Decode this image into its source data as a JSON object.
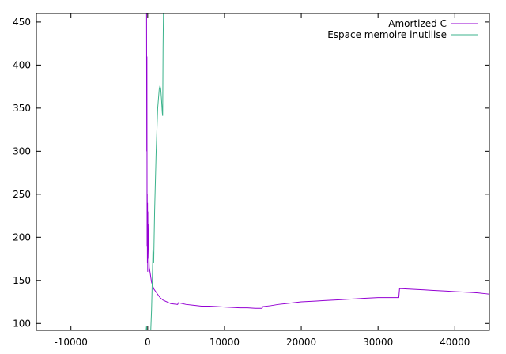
{
  "chart_data": {
    "type": "line",
    "title": "",
    "xlabel": "",
    "ylabel": "",
    "xlim": [
      -14500,
      44500
    ],
    "ylim": [
      92,
      460
    ],
    "grid": false,
    "legend_position": "top-right",
    "x_ticks": [
      -10000,
      0,
      10000,
      20000,
      30000,
      40000
    ],
    "y_ticks": [
      100,
      150,
      200,
      250,
      300,
      350,
      400,
      450
    ],
    "x_tick_labels": [
      "-10000",
      "0",
      "10000",
      "20000",
      "30000",
      "40000"
    ],
    "y_tick_labels": [
      "100",
      "150",
      "200",
      "250",
      "300",
      "350",
      "400",
      "450"
    ],
    "series": [
      {
        "name": "Amortized C",
        "color": "#9400d3",
        "points": [
          [
            -150,
            460
          ],
          [
            -120,
            300
          ],
          [
            -100,
            410
          ],
          [
            -80,
            190
          ],
          [
            -60,
            250
          ],
          [
            -40,
            170
          ],
          [
            -20,
            240
          ],
          [
            0,
            160
          ],
          [
            20,
            230
          ],
          [
            40,
            175
          ],
          [
            60,
            215
          ],
          [
            100,
            190
          ],
          [
            150,
            185
          ],
          [
            200,
            165
          ],
          [
            300,
            160
          ],
          [
            500,
            148
          ],
          [
            800,
            140
          ],
          [
            1200,
            135
          ],
          [
            1600,
            130
          ],
          [
            2000,
            127
          ],
          [
            2500,
            125
          ],
          [
            3000,
            123
          ],
          [
            3900,
            122
          ],
          [
            4000,
            124
          ],
          [
            5000,
            122
          ],
          [
            6000,
            121
          ],
          [
            7000,
            120
          ],
          [
            8000,
            120
          ],
          [
            9000,
            119.5
          ],
          [
            10000,
            119
          ],
          [
            11000,
            118.5
          ],
          [
            12000,
            118
          ],
          [
            13000,
            118
          ],
          [
            14000,
            117.5
          ],
          [
            14900,
            117.5
          ],
          [
            15000,
            119.5
          ],
          [
            16000,
            120.5
          ],
          [
            17000,
            122
          ],
          [
            18000,
            123
          ],
          [
            19000,
            124
          ],
          [
            20000,
            125
          ],
          [
            21000,
            125.5
          ],
          [
            22000,
            126
          ],
          [
            23000,
            126.5
          ],
          [
            24000,
            127
          ],
          [
            25000,
            127.5
          ],
          [
            26000,
            128
          ],
          [
            27000,
            128.5
          ],
          [
            28000,
            129
          ],
          [
            29000,
            129.5
          ],
          [
            30000,
            130
          ],
          [
            31000,
            130
          ],
          [
            32000,
            130
          ],
          [
            32700,
            130
          ],
          [
            32800,
            140.5
          ],
          [
            34000,
            140
          ],
          [
            35000,
            139.5
          ],
          [
            36000,
            139
          ],
          [
            37000,
            138.5
          ],
          [
            38000,
            138
          ],
          [
            39000,
            137.5
          ],
          [
            40000,
            137
          ],
          [
            41000,
            136.5
          ],
          [
            42000,
            136
          ],
          [
            43000,
            135.5
          ],
          [
            44000,
            134.5
          ],
          [
            44500,
            134
          ]
        ]
      },
      {
        "name": "Espace memoire inutilise",
        "color": "#3cb38c",
        "points": [
          [
            -200,
            92
          ],
          [
            -150,
            97
          ],
          [
            -120,
            92
          ],
          [
            400,
            92
          ],
          [
            500,
            115
          ],
          [
            600,
            150
          ],
          [
            680,
            185
          ],
          [
            720,
            180
          ],
          [
            780,
            170
          ],
          [
            900,
            230
          ],
          [
            1100,
            300
          ],
          [
            1300,
            350
          ],
          [
            1500,
            372
          ],
          [
            1600,
            376
          ],
          [
            1700,
            372
          ],
          [
            1800,
            360
          ],
          [
            1900,
            345
          ],
          [
            1950,
            341
          ],
          [
            2000,
            420
          ],
          [
            2050,
            460
          ]
        ]
      }
    ]
  }
}
